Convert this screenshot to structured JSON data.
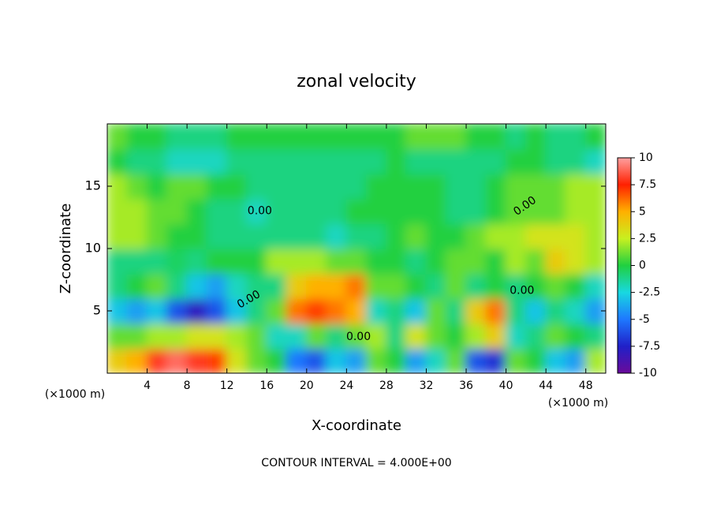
{
  "chart_data": {
    "type": "heatmap",
    "title": "zonal velocity",
    "x_label": "X-coordinate",
    "y_label": "Z-coordinate",
    "x_unit_label": "(×1000 m)",
    "y_unit_label": "(×1000 m)",
    "footer": "CONTOUR INTERVAL = 4.000E+00",
    "annotations": [
      "0.00",
      "0.00",
      "0.00",
      "0.00",
      "0.00"
    ],
    "xlim": [
      0,
      50
    ],
    "ylim": [
      0,
      20
    ],
    "xticks": [
      4,
      8,
      12,
      16,
      20,
      24,
      28,
      32,
      36,
      40,
      44,
      48
    ],
    "yticks": [
      5,
      10,
      15
    ],
    "x": [
      1,
      3,
      5,
      7,
      9,
      11,
      13,
      15,
      17,
      19,
      21,
      23,
      25,
      27,
      29,
      31,
      33,
      35,
      37,
      39,
      41,
      43,
      45,
      47,
      49
    ],
    "y": [
      1,
      3,
      5,
      7,
      9,
      11,
      13,
      15,
      17,
      19
    ],
    "z": [
      [
        4,
        5,
        8,
        9,
        8,
        7,
        3,
        1,
        0,
        -5,
        -6,
        -3,
        -4,
        1,
        0,
        -4,
        -2,
        1,
        -6,
        -7,
        1,
        0,
        -3,
        -4,
        2
      ],
      [
        1,
        1,
        2,
        2,
        3,
        3,
        2,
        1,
        -2,
        -2,
        1,
        -1,
        1,
        2,
        -1,
        3,
        1,
        0,
        2,
        4,
        -2,
        -1,
        1,
        0,
        -1
      ],
      [
        -3,
        -4,
        -3,
        -6,
        -8,
        -6,
        -3,
        -1,
        1,
        6,
        7,
        6,
        5,
        -2,
        -1,
        -3,
        1,
        -1,
        4,
        6,
        -1,
        -3,
        -1,
        -2,
        -4
      ],
      [
        -1,
        0,
        1,
        -1,
        -3,
        -4,
        -2,
        -1,
        -1,
        4,
        5,
        5,
        6,
        1,
        1,
        0,
        -1,
        1,
        -1,
        0,
        -1,
        0,
        1,
        0,
        -2
      ],
      [
        -1,
        -1,
        -1,
        -0.5,
        -1,
        0,
        0,
        0,
        2,
        2,
        2,
        1,
        1,
        0,
        0,
        -1,
        0,
        1,
        1,
        0,
        2,
        1,
        4,
        3,
        2
      ],
      [
        2,
        2,
        1,
        0,
        0,
        -1,
        -1,
        -1,
        -1,
        -1,
        -1,
        -2,
        -1,
        -1,
        0,
        1,
        0,
        0,
        1,
        2,
        2,
        3,
        3,
        3,
        2
      ],
      [
        2,
        2,
        1,
        1,
        0,
        -1,
        -1,
        -2,
        -1,
        -1,
        -1,
        -1,
        0,
        0,
        0,
        0,
        0,
        -1,
        -1,
        0,
        1,
        1,
        1,
        2,
        2
      ],
      [
        2,
        1,
        0,
        1,
        1,
        0,
        0,
        -1,
        -1,
        -1,
        -1,
        -1,
        -1,
        0,
        0,
        0,
        0,
        -1,
        -1,
        0,
        1,
        1,
        1,
        2,
        2
      ],
      [
        0,
        -1,
        -1,
        -2,
        -2,
        -2,
        -1,
        -1,
        -1,
        -1,
        -1,
        -1,
        -1,
        -1,
        0,
        -1,
        -1,
        -1,
        -1,
        -1,
        0,
        0,
        -1,
        -1,
        -2
      ],
      [
        1,
        0,
        0,
        -1,
        -1,
        -1,
        0,
        0,
        0,
        0,
        0,
        0,
        0,
        0,
        0,
        1,
        1,
        1,
        0,
        0,
        -1,
        0,
        -1,
        -1,
        0
      ]
    ],
    "colorbar": {
      "lim": [
        -10,
        10
      ],
      "ticks": [
        10,
        7.5,
        5,
        2.5,
        0,
        -2.5,
        -5,
        -7.5,
        -10
      ],
      "colorscale": [
        [
          -10,
          "#6a0a9a"
        ],
        [
          -7.5,
          "#2020c8"
        ],
        [
          -5,
          "#1e78ff"
        ],
        [
          -2.5,
          "#18d8e0"
        ],
        [
          0,
          "#20d040"
        ],
        [
          2.5,
          "#c8f020"
        ],
        [
          5,
          "#ffb000"
        ],
        [
          7.5,
          "#ff2000"
        ],
        [
          10,
          "#ffa0a0"
        ]
      ]
    }
  }
}
